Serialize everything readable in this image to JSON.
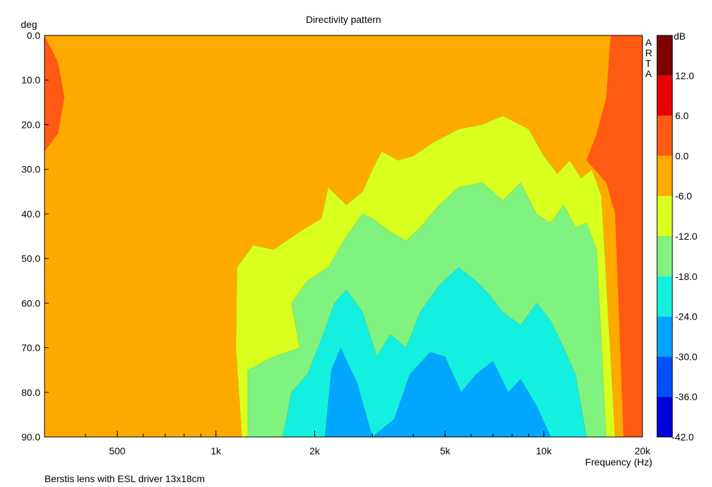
{
  "chart_data": {
    "type": "heatmap",
    "title": "Directivity pattern",
    "subtitle": "",
    "xlabel": "Frequency (Hz)",
    "ylabel": "deg",
    "footer": "Berstis lens with ESL driver 13x18cm",
    "watermark": "ARTA",
    "x_scale": "log",
    "xlim": [
      300,
      20000
    ],
    "ylim": [
      0,
      90
    ],
    "y_inverted": true,
    "xticks": [
      {
        "value": 500,
        "label": "500"
      },
      {
        "value": 1000,
        "label": "1k"
      },
      {
        "value": 2000,
        "label": "2k"
      },
      {
        "value": 5000,
        "label": "5k"
      },
      {
        "value": 10000,
        "label": "10k"
      },
      {
        "value": 20000,
        "label": "20k"
      }
    ],
    "yticks": [
      {
        "value": 0,
        "label": "0.0"
      },
      {
        "value": 10,
        "label": "10.0"
      },
      {
        "value": 20,
        "label": "20.0"
      },
      {
        "value": 30,
        "label": "30.0"
      },
      {
        "value": 40,
        "label": "40.0"
      },
      {
        "value": 50,
        "label": "50.0"
      },
      {
        "value": 60,
        "label": "60.0"
      },
      {
        "value": 70,
        "label": "70.0"
      },
      {
        "value": 80,
        "label": "80.0"
      },
      {
        "value": 90,
        "label": "90.0"
      }
    ],
    "colorbar": {
      "unit": "dB",
      "levels": [
        {
          "min": 12,
          "max": 18,
          "color": "#7f0000",
          "label": ""
        },
        {
          "min": 6,
          "max": 12,
          "color": "#e80000",
          "label": "12.0"
        },
        {
          "min": 0,
          "max": 6,
          "color": "#ff5a14",
          "label": "6.0"
        },
        {
          "min": -6,
          "max": 0,
          "color": "#ffaa00",
          "label": "0.0"
        },
        {
          "min": -12,
          "max": -6,
          "color": "#d8ff1e",
          "label": "-6.0"
        },
        {
          "min": -18,
          "max": -12,
          "color": "#7ff27f",
          "label": "-12.0"
        },
        {
          "min": -24,
          "max": -18,
          "color": "#14f0e0",
          "label": "-18.0"
        },
        {
          "min": -30,
          "max": -24,
          "color": "#00a6ff",
          "label": "-24.0"
        },
        {
          "min": -36,
          "max": -30,
          "color": "#0050ff",
          "label": "-30.0"
        },
        {
          "min": -42,
          "max": -36,
          "color": "#0000d8",
          "label": "-36.0"
        }
      ],
      "bottom_label": "-42.0"
    },
    "contour_boundaries": [
      {
        "name": "yellow-green-edge",
        "level": -6,
        "points": [
          [
            1200,
            90
          ],
          [
            1150,
            70
          ],
          [
            1160,
            52
          ],
          [
            1300,
            47
          ],
          [
            1500,
            48
          ],
          [
            1800,
            44
          ],
          [
            2100,
            41
          ],
          [
            2200,
            34
          ],
          [
            2500,
            38
          ],
          [
            2800,
            35
          ],
          [
            3000,
            30
          ],
          [
            3200,
            26
          ],
          [
            3600,
            28
          ],
          [
            4000,
            27
          ],
          [
            4600,
            24
          ],
          [
            5500,
            21
          ],
          [
            6500,
            20
          ],
          [
            7500,
            18
          ],
          [
            9000,
            21
          ],
          [
            10000,
            27
          ],
          [
            11000,
            31
          ],
          [
            12000,
            28
          ],
          [
            13000,
            32
          ],
          [
            14000,
            30
          ],
          [
            15000,
            36
          ],
          [
            16500,
            90
          ]
        ]
      },
      {
        "name": "green-cyan-edge",
        "level": -12,
        "points": [
          [
            1250,
            90
          ],
          [
            1250,
            75
          ],
          [
            1500,
            72
          ],
          [
            1800,
            70
          ],
          [
            1700,
            60
          ],
          [
            1900,
            55
          ],
          [
            2200,
            52
          ],
          [
            2500,
            45
          ],
          [
            2800,
            40
          ],
          [
            3000,
            41
          ],
          [
            3400,
            44
          ],
          [
            3800,
            46
          ],
          [
            4200,
            43
          ],
          [
            4800,
            38
          ],
          [
            5500,
            34
          ],
          [
            6500,
            33
          ],
          [
            7500,
            37
          ],
          [
            8500,
            33
          ],
          [
            9500,
            40
          ],
          [
            10500,
            42
          ],
          [
            11500,
            38
          ],
          [
            12500,
            43
          ],
          [
            13500,
            42
          ],
          [
            14500,
            48
          ],
          [
            15500,
            90
          ]
        ]
      },
      {
        "name": "cyan-blue-edge",
        "level": -18,
        "points": [
          [
            1600,
            90
          ],
          [
            1700,
            80
          ],
          [
            1900,
            76
          ],
          [
            2100,
            68
          ],
          [
            2300,
            60
          ],
          [
            2500,
            57
          ],
          [
            2800,
            62
          ],
          [
            3100,
            72
          ],
          [
            3400,
            67
          ],
          [
            3800,
            70
          ],
          [
            4200,
            62
          ],
          [
            4800,
            56
          ],
          [
            5500,
            52
          ],
          [
            6200,
            55
          ],
          [
            6800,
            58
          ],
          [
            7500,
            62
          ],
          [
            8500,
            65
          ],
          [
            9500,
            60
          ],
          [
            10500,
            64
          ],
          [
            11500,
            70
          ],
          [
            12500,
            76
          ],
          [
            13500,
            90
          ]
        ]
      },
      {
        "name": "blue-deep-edge",
        "level": -24,
        "points": [
          [
            2150,
            90
          ],
          [
            2250,
            75
          ],
          [
            2400,
            70
          ],
          [
            2700,
            78
          ],
          [
            3000,
            90
          ],
          [
            3500,
            86
          ],
          [
            3900,
            76
          ],
          [
            4500,
            71
          ],
          [
            5000,
            72
          ],
          [
            5600,
            80
          ],
          [
            6200,
            76
          ],
          [
            7000,
            73
          ],
          [
            7800,
            80
          ],
          [
            8500,
            77
          ],
          [
            9500,
            83
          ],
          [
            10500,
            90
          ]
        ]
      }
    ]
  }
}
